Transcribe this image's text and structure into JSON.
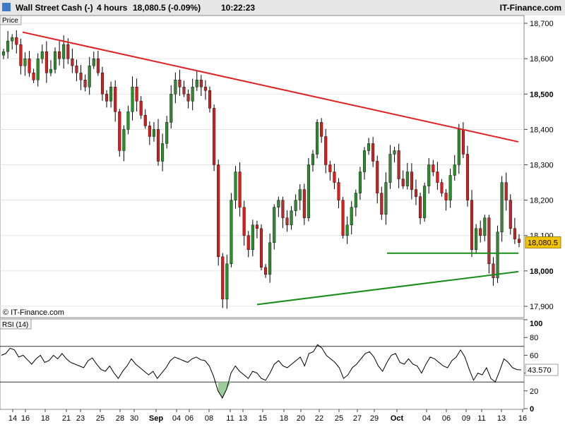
{
  "header": {
    "instrument": "Wall Street Cash (-)",
    "timeframe": "4 hours",
    "quote": "18,080.5 (-0.09%)",
    "time": "10:22:23",
    "brand": "IT-Finance.com"
  },
  "price_panel": {
    "label": "Price",
    "watermark": "© IT-Finance.com",
    "last_price_label": "18,080.5"
  },
  "rsi_panel": {
    "label": "RSI (14)",
    "last_value_label": "43.570"
  },
  "colors": {
    "up": "#2e8b2e",
    "down": "#cc2222",
    "wick": "#000000",
    "resistance": "#e02020",
    "support": "#1a8c1a",
    "rsi_fill": "#9ccc9c",
    "last_badge": "#f5c400"
  },
  "chart_data": [
    {
      "type": "candlestick",
      "panel": "price",
      "ylim": [
        17870,
        18720
      ],
      "y_ticks": [
        17900,
        18000,
        18100,
        18200,
        18300,
        18400,
        18500,
        18600,
        18700
      ],
      "y_tick_labels": [
        "17,900",
        "18,000",
        "18,100",
        "18,200",
        "18,300",
        "18,400",
        "18,500",
        "18,600",
        "18,700"
      ],
      "x_tick_labels": [
        "14",
        "16",
        "18",
        "21",
        "23",
        "25",
        "28",
        "30",
        "Sep",
        "04",
        "06",
        "08",
        "11",
        "13",
        "15",
        "18",
        "20",
        "22",
        "25",
        "27",
        "29",
        "Oct",
        "04",
        "06",
        "09",
        "11",
        "13",
        "16"
      ],
      "series_close": [
        18620,
        18650,
        18660,
        18640,
        18580,
        18600,
        18560,
        18540,
        18600,
        18620,
        18560,
        18570,
        18620,
        18600,
        18640,
        18600,
        18580,
        18560,
        18540,
        18520,
        18580,
        18600,
        18560,
        18500,
        18480,
        18520,
        18450,
        18340,
        18400,
        18450,
        18520,
        18480,
        18440,
        18410,
        18380,
        18400,
        18310,
        18360,
        18420,
        18500,
        18540,
        18520,
        18500,
        18480,
        18520,
        18540,
        18520,
        18510,
        18460,
        18300,
        18040,
        17920,
        18020,
        18200,
        18280,
        18180,
        18100,
        18060,
        18130,
        18120,
        18010,
        17990,
        18080,
        18180,
        18200,
        18150,
        18130,
        18170,
        18200,
        18230,
        18150,
        18300,
        18330,
        18420,
        18380,
        18300,
        18280,
        18250,
        18200,
        18100,
        18130,
        18180,
        18220,
        18280,
        18340,
        18360,
        18310,
        18220,
        18160,
        18250,
        18330,
        18340,
        18260,
        18240,
        18280,
        18230,
        18210,
        18150,
        18240,
        18300,
        18280,
        18250,
        18220,
        18200,
        18270,
        18300,
        18400,
        18330,
        18200,
        18060,
        18120,
        18100,
        18150,
        18020,
        17980,
        18110,
        18250,
        18200,
        18120,
        18090,
        18080
      ],
      "annotations": {
        "resistance_line": {
          "from": [
            "2023-08-14",
            18675
          ],
          "to": [
            "2023-10-17",
            18365
          ]
        },
        "support_trend_line": {
          "from": [
            "2023-09-11",
            17905
          ],
          "to": [
            "2023-10-17",
            17998
          ]
        },
        "horizontal_support": {
          "from": [
            "2023-09-27",
            18050
          ],
          "to": [
            "2023-10-17",
            18050
          ]
        }
      },
      "last_value": 18080.5
    },
    {
      "type": "line",
      "panel": "rsi",
      "ylim": [
        0,
        100
      ],
      "y_ticks": [
        0,
        20,
        40,
        60,
        80,
        100
      ],
      "y_tick_labels": [
        "0",
        "20",
        "40",
        "60",
        "80",
        "100"
      ],
      "overbought": 70,
      "oversold": 30,
      "series_values": [
        60,
        62,
        68,
        66,
        58,
        60,
        55,
        50,
        56,
        60,
        52,
        54,
        60,
        56,
        62,
        56,
        52,
        50,
        48,
        46,
        54,
        57,
        50,
        44,
        42,
        48,
        40,
        34,
        42,
        48,
        56,
        50,
        46,
        42,
        38,
        42,
        34,
        40,
        46,
        54,
        58,
        56,
        54,
        52,
        56,
        58,
        55,
        54,
        48,
        36,
        20,
        12,
        22,
        40,
        48,
        42,
        38,
        34,
        42,
        40,
        34,
        32,
        40,
        50,
        54,
        48,
        46,
        50,
        54,
        58,
        48,
        62,
        64,
        72,
        68,
        60,
        56,
        52,
        46,
        34,
        38,
        46,
        50,
        56,
        62,
        64,
        58,
        48,
        42,
        52,
        60,
        62,
        52,
        50,
        56,
        50,
        48,
        40,
        50,
        58,
        56,
        52,
        48,
        46,
        54,
        58,
        66,
        58,
        44,
        32,
        40,
        38,
        46,
        34,
        30,
        42,
        56,
        52,
        46,
        44,
        43.57
      ],
      "last_value": 43.57
    }
  ]
}
